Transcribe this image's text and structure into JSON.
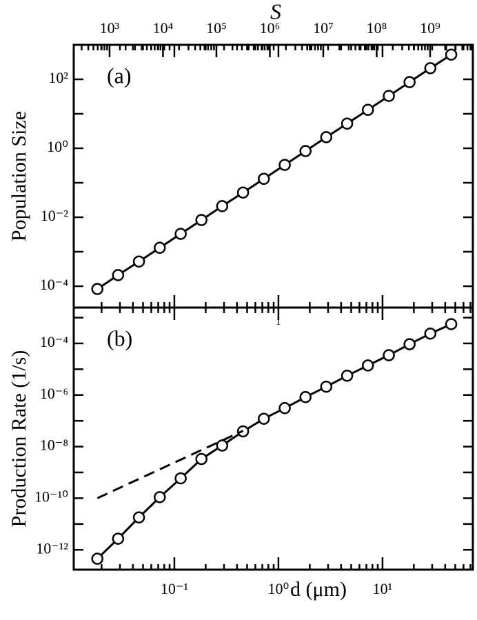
{
  "chart_data": [
    {
      "type": "line",
      "ylabel": "Population Size",
      "panel_label": "(a)",
      "x2label": "S",
      "x": [
        0.0182,
        0.0288,
        0.0457,
        0.0724,
        0.115,
        0.182,
        0.288,
        0.457,
        0.724,
        1.15,
        1.82,
        2.88,
        4.57,
        7.24,
        11.5,
        18.2,
        28.8,
        45.7
      ],
      "series": [
        {
          "color": "#000000",
          "marker": "circle",
          "dash": false,
          "values": [
            8.3e-05,
            0.00021,
            0.00052,
            0.0013,
            0.0033,
            0.0083,
            0.021,
            0.052,
            0.13,
            0.33,
            0.83,
            2.1,
            5.2,
            13,
            33,
            83,
            210,
            520
          ]
        }
      ],
      "xlim": [
        0.0108,
        73.8
      ],
      "xscale": "log",
      "x2lim": [
        213.8,
        6310000000.0
      ],
      "x2ticks": [
        {
          "value": 1000,
          "label": "10³"
        },
        {
          "value": 10000,
          "label": "10⁴"
        },
        {
          "value": 100000,
          "label": "10⁵"
        },
        {
          "value": 1000000,
          "label": "10⁶"
        },
        {
          "value": 10000000,
          "label": "10⁷"
        },
        {
          "value": 100000000,
          "label": "10⁸"
        },
        {
          "value": 1000000000,
          "label": "10⁹"
        }
      ],
      "ylim": [
        2.4e-05,
        1000
      ],
      "yscale": "log",
      "yticks": [
        {
          "value": 0.0001,
          "label": "10⁻⁴"
        },
        {
          "value": 0.01,
          "label": "10⁻²"
        },
        {
          "value": 1,
          "label": "10⁰"
        },
        {
          "value": 100,
          "label": "10²"
        }
      ],
      "yminor_ticks": [
        0.001,
        0.1,
        10
      ]
    },
    {
      "type": "line",
      "ylabel": "Production Rate (1/s)",
      "panel_label": "(b)",
      "xlabel": "d (μm)",
      "annotation": "1",
      "x": [
        0.0182,
        0.0288,
        0.0457,
        0.0724,
        0.115,
        0.182,
        0.288,
        0.457,
        0.724,
        1.15,
        1.82,
        2.88,
        4.57,
        7.24,
        11.5,
        18.2,
        28.8,
        45.7
      ],
      "series": [
        {
          "color": "#000000",
          "marker": "circle",
          "dash": false,
          "values": [
            4.5e-13,
            2.7e-12,
            1.8e-11,
            1.1e-10,
            5.9e-10,
            3.3e-09,
            1.1e-08,
            3.9e-08,
            1.2e-07,
            3.1e-07,
            8.3e-07,
            2.1e-06,
            5.6e-06,
            1.4e-05,
            3.5e-05,
            9.3e-05,
            0.00024,
            0.00056
          ]
        },
        {
          "color": "#000000",
          "marker": "none",
          "dash": true,
          "x": [
            0.0182,
            0.457
          ],
          "values": [
            1e-10,
            4.1e-08
          ]
        }
      ],
      "xlim": [
        0.0108,
        73.8
      ],
      "xscale": "log",
      "xticks": [
        {
          "value": 0.1,
          "label": "10⁻¹"
        },
        {
          "value": 1,
          "label": "10⁰"
        },
        {
          "value": 10,
          "label": "10¹"
        }
      ],
      "ylim": [
        1.7e-13,
        0.00245
      ],
      "yscale": "log",
      "yticks": [
        {
          "value": 1e-12,
          "label": "10⁻¹²"
        },
        {
          "value": 1e-10,
          "label": "10⁻¹⁰"
        },
        {
          "value": 1e-08,
          "label": "10⁻⁸"
        },
        {
          "value": 1e-06,
          "label": "10⁻⁶"
        },
        {
          "value": 0.0001,
          "label": "10⁻⁴"
        }
      ],
      "yminor_ticks": [
        1e-11,
        1e-09,
        1e-07,
        1e-05,
        0.001
      ],
      "minor_ticks": true
    }
  ]
}
